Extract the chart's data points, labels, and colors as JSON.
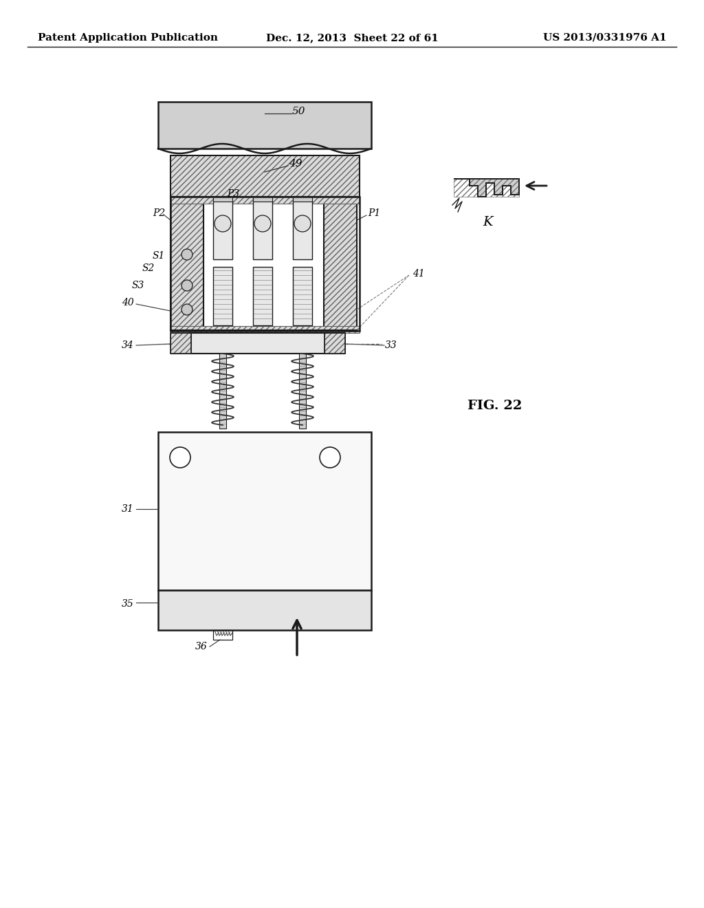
{
  "bg": "#ffffff",
  "lc": "#1a1a1a",
  "header_left": "Patent Application Publication",
  "header_mid": "Dec. 12, 2013  Sheet 22 of 61",
  "header_right": "US 2013/0331976 A1",
  "fig_caption": "FIG. 22",
  "hatch_fc": "#dcdcdc",
  "hatch_ec": "#606060",
  "spring_color": "#333333",
  "pin_fc": "#eeeeee",
  "body_fc": "#f5f5f5",
  "plate_fc": "#e8e8e8"
}
